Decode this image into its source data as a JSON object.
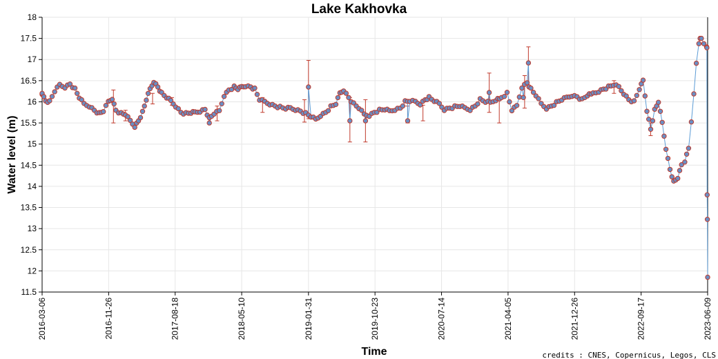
{
  "chart_data": {
    "type": "scatter",
    "title": "Lake Kakhovka",
    "xlabel": "Time",
    "ylabel": "Water level (m)",
    "credits": "credits : CNES, Copernicus, Legos, CLS",
    "ylim": [
      11.5,
      18
    ],
    "y_ticks": [
      "11.5",
      "12",
      "12.5",
      "13",
      "13.5",
      "14",
      "14.5",
      "15",
      "15.5",
      "16",
      "16.5",
      "17",
      "17.5",
      "18"
    ],
    "xlim": [
      "2016-03-06",
      "2023-06-09"
    ],
    "x_ticks": [
      "2016-03-06",
      "2016-11-26",
      "2017-08-18",
      "2018-05-10",
      "2019-01-31",
      "2019-10-23",
      "2020-07-14",
      "2021-04-05",
      "2021-12-26",
      "2022-09-17",
      "2023-06-09"
    ],
    "grid": true,
    "colors": {
      "line": "#5b9bd5",
      "marker_fill": "#6a8fc4",
      "marker_edge": "#c0392b",
      "error_bar": "#c0392b"
    },
    "series": [
      {
        "anchors": [
          [
            "2016-03-06",
            16.2
          ],
          [
            "2016-03-20",
            16.02
          ],
          [
            "2016-04-05",
            16.0
          ],
          [
            "2016-04-25",
            16.25
          ],
          [
            "2016-05-15",
            16.4
          ],
          [
            "2016-06-05",
            16.35
          ],
          [
            "2016-06-25",
            16.42
          ],
          [
            "2016-07-15",
            16.3
          ],
          [
            "2016-08-01",
            16.1
          ],
          [
            "2016-08-20",
            15.95
          ],
          [
            "2016-09-10",
            15.9
          ],
          [
            "2016-09-30",
            15.8
          ],
          [
            "2016-10-20",
            15.72
          ],
          [
            "2016-11-05",
            15.78
          ],
          [
            "2016-11-25",
            16.0
          ],
          [
            "2016-12-10",
            16.08
          ],
          [
            "2016-12-25",
            15.8
          ],
          [
            "2017-01-15",
            15.72
          ],
          [
            "2017-02-01",
            15.7
          ],
          [
            "2017-02-20",
            15.55
          ],
          [
            "2017-03-10",
            15.42
          ],
          [
            "2017-03-25",
            15.55
          ],
          [
            "2017-04-10",
            15.75
          ],
          [
            "2017-04-25",
            16.05
          ],
          [
            "2017-05-10",
            16.3
          ],
          [
            "2017-05-25",
            16.48
          ],
          [
            "2017-06-10",
            16.35
          ],
          [
            "2017-06-25",
            16.2
          ],
          [
            "2017-07-15",
            16.1
          ],
          [
            "2017-08-01",
            16.02
          ],
          [
            "2017-08-20",
            15.9
          ],
          [
            "2017-09-10",
            15.75
          ],
          [
            "2017-09-30",
            15.72
          ],
          [
            "2017-10-20",
            15.74
          ],
          [
            "2017-11-05",
            15.75
          ],
          [
            "2017-11-25",
            15.78
          ],
          [
            "2017-12-15",
            15.82
          ],
          [
            "2018-01-01",
            15.6
          ],
          [
            "2018-01-20",
            15.72
          ],
          [
            "2018-02-10",
            15.78
          ],
          [
            "2018-03-01",
            16.15
          ],
          [
            "2018-03-20",
            16.28
          ],
          [
            "2018-04-10",
            16.35
          ],
          [
            "2018-04-25",
            16.3
          ],
          [
            "2018-05-10",
            16.35
          ],
          [
            "2018-05-25",
            16.38
          ],
          [
            "2018-06-15",
            16.35
          ],
          [
            "2018-07-01",
            16.3
          ],
          [
            "2018-07-20",
            16.05
          ],
          [
            "2018-08-10",
            16.0
          ],
          [
            "2018-08-30",
            15.95
          ],
          [
            "2018-09-20",
            15.9
          ],
          [
            "2018-10-10",
            15.87
          ],
          [
            "2018-11-01",
            15.84
          ],
          [
            "2018-11-20",
            15.85
          ],
          [
            "2018-12-10",
            15.82
          ],
          [
            "2018-12-30",
            15.78
          ],
          [
            "2019-01-20",
            15.72
          ],
          [
            "2019-02-10",
            15.65
          ],
          [
            "2019-03-01",
            15.58
          ],
          [
            "2019-03-20",
            15.68
          ],
          [
            "2019-04-10",
            15.75
          ],
          [
            "2019-04-30",
            15.88
          ],
          [
            "2019-05-20",
            15.95
          ],
          [
            "2019-06-05",
            16.2
          ],
          [
            "2019-06-20",
            16.28
          ],
          [
            "2019-07-10",
            16.1
          ],
          [
            "2019-07-30",
            15.95
          ],
          [
            "2019-08-20",
            15.85
          ],
          [
            "2019-09-10",
            15.7
          ],
          [
            "2019-09-30",
            15.68
          ],
          [
            "2019-10-20",
            15.75
          ],
          [
            "2019-11-10",
            15.8
          ],
          [
            "2019-12-01",
            15.82
          ],
          [
            "2019-12-20",
            15.78
          ],
          [
            "2020-01-10",
            15.82
          ],
          [
            "2020-02-01",
            15.85
          ],
          [
            "2020-02-20",
            16.0
          ],
          [
            "2020-03-10",
            16.02
          ],
          [
            "2020-04-01",
            16.0
          ],
          [
            "2020-04-20",
            15.95
          ],
          [
            "2020-05-10",
            16.05
          ],
          [
            "2020-05-25",
            16.1
          ],
          [
            "2020-06-15",
            16.02
          ],
          [
            "2020-07-05",
            15.95
          ],
          [
            "2020-07-25",
            15.82
          ],
          [
            "2020-08-15",
            15.85
          ],
          [
            "2020-09-05",
            15.88
          ],
          [
            "2020-09-25",
            15.9
          ],
          [
            "2020-10-15",
            15.85
          ],
          [
            "2020-11-05",
            15.82
          ],
          [
            "2020-11-25",
            15.9
          ],
          [
            "2020-12-15",
            16.05
          ],
          [
            "2021-01-05",
            16.0
          ],
          [
            "2021-01-25",
            15.98
          ],
          [
            "2021-02-15",
            16.05
          ],
          [
            "2021-03-10",
            16.1
          ],
          [
            "2021-04-01",
            16.2
          ],
          [
            "2021-04-20",
            15.8
          ],
          [
            "2021-05-10",
            15.9
          ],
          [
            "2021-05-30",
            16.35
          ],
          [
            "2021-06-20",
            16.45
          ],
          [
            "2021-07-05",
            16.3
          ],
          [
            "2021-07-25",
            16.15
          ],
          [
            "2021-08-15",
            15.95
          ],
          [
            "2021-09-05",
            15.85
          ],
          [
            "2021-09-25",
            15.9
          ],
          [
            "2021-10-15",
            15.98
          ],
          [
            "2021-11-05",
            16.05
          ],
          [
            "2021-11-25",
            16.1
          ],
          [
            "2021-12-15",
            16.15
          ],
          [
            "2022-01-05",
            16.12
          ],
          [
            "2022-01-25",
            16.05
          ],
          [
            "2022-02-15",
            16.15
          ],
          [
            "2022-03-10",
            16.2
          ],
          [
            "2022-04-01",
            16.25
          ],
          [
            "2022-04-20",
            16.3
          ],
          [
            "2022-05-10",
            16.35
          ],
          [
            "2022-05-30",
            16.4
          ],
          [
            "2022-06-20",
            16.35
          ],
          [
            "2022-07-10",
            16.2
          ],
          [
            "2022-07-30",
            16.05
          ],
          [
            "2022-08-20",
            16.0
          ],
          [
            "2022-09-10",
            16.3
          ],
          [
            "2022-09-25",
            16.5
          ],
          [
            "2022-10-10",
            15.8
          ],
          [
            "2022-10-25",
            15.35
          ],
          [
            "2022-11-10",
            15.8
          ],
          [
            "2022-11-25",
            16.0
          ],
          [
            "2022-12-10",
            15.5
          ],
          [
            "2022-12-25",
            14.9
          ],
          [
            "2023-01-10",
            14.4
          ],
          [
            "2023-01-25",
            14.1
          ],
          [
            "2023-02-10",
            14.2
          ],
          [
            "2023-02-25",
            14.5
          ],
          [
            "2023-03-10",
            14.6
          ],
          [
            "2023-03-25",
            14.9
          ],
          [
            "2023-04-05",
            15.5
          ],
          [
            "2023-04-15",
            16.2
          ],
          [
            "2023-04-25",
            16.9
          ],
          [
            "2023-05-05",
            17.4
          ],
          [
            "2023-05-15",
            17.5
          ],
          [
            "2023-05-25",
            17.35
          ],
          [
            "2023-06-05",
            17.3
          ]
        ],
        "special_points": [
          [
            "2016-03-06",
            16.2
          ],
          [
            "2018-01-01",
            15.5
          ],
          [
            "2019-01-31",
            16.35
          ],
          [
            "2019-07-15",
            15.55
          ],
          [
            "2019-09-15",
            15.55
          ],
          [
            "2020-03-01",
            15.55
          ],
          [
            "2021-01-20",
            16.22
          ],
          [
            "2021-06-05",
            16.1
          ],
          [
            "2021-06-25",
            16.92
          ],
          [
            "2023-05-10",
            17.5
          ],
          [
            "2023-06-06",
            17.28
          ],
          [
            "2023-06-07",
            13.8
          ],
          [
            "2023-06-08",
            13.22
          ],
          [
            "2023-06-09",
            11.85
          ]
        ],
        "error_bars": [
          [
            "2016-12-15",
            16.05,
            15.5,
            16.28
          ],
          [
            "2017-02-01",
            15.7,
            15.55,
            15.8
          ],
          [
            "2017-05-20",
            16.1,
            15.95,
            16.2
          ],
          [
            "2017-08-05",
            16.0,
            15.92,
            16.1
          ],
          [
            "2018-02-01",
            15.75,
            15.55,
            15.9
          ],
          [
            "2018-08-01",
            16.0,
            15.75,
            16.1
          ],
          [
            "2019-01-15",
            15.8,
            15.52,
            16.05
          ],
          [
            "2019-01-31",
            16.35,
            15.6,
            16.98
          ],
          [
            "2019-07-15",
            15.55,
            15.05,
            16.1
          ],
          [
            "2019-09-15",
            15.55,
            15.05,
            16.05
          ],
          [
            "2020-03-01",
            15.75,
            15.5,
            15.9
          ],
          [
            "2020-05-01",
            15.75,
            15.55,
            15.92
          ],
          [
            "2021-01-20",
            16.22,
            15.75,
            16.68
          ],
          [
            "2021-03-01",
            15.75,
            15.5,
            16.05
          ],
          [
            "2021-06-10",
            16.3,
            15.85,
            16.62
          ],
          [
            "2021-06-25",
            16.92,
            16.35,
            17.3
          ],
          [
            "2022-06-01",
            16.4,
            16.2,
            16.5
          ],
          [
            "2022-10-25",
            15.35,
            15.2,
            15.5
          ]
        ]
      }
    ]
  }
}
